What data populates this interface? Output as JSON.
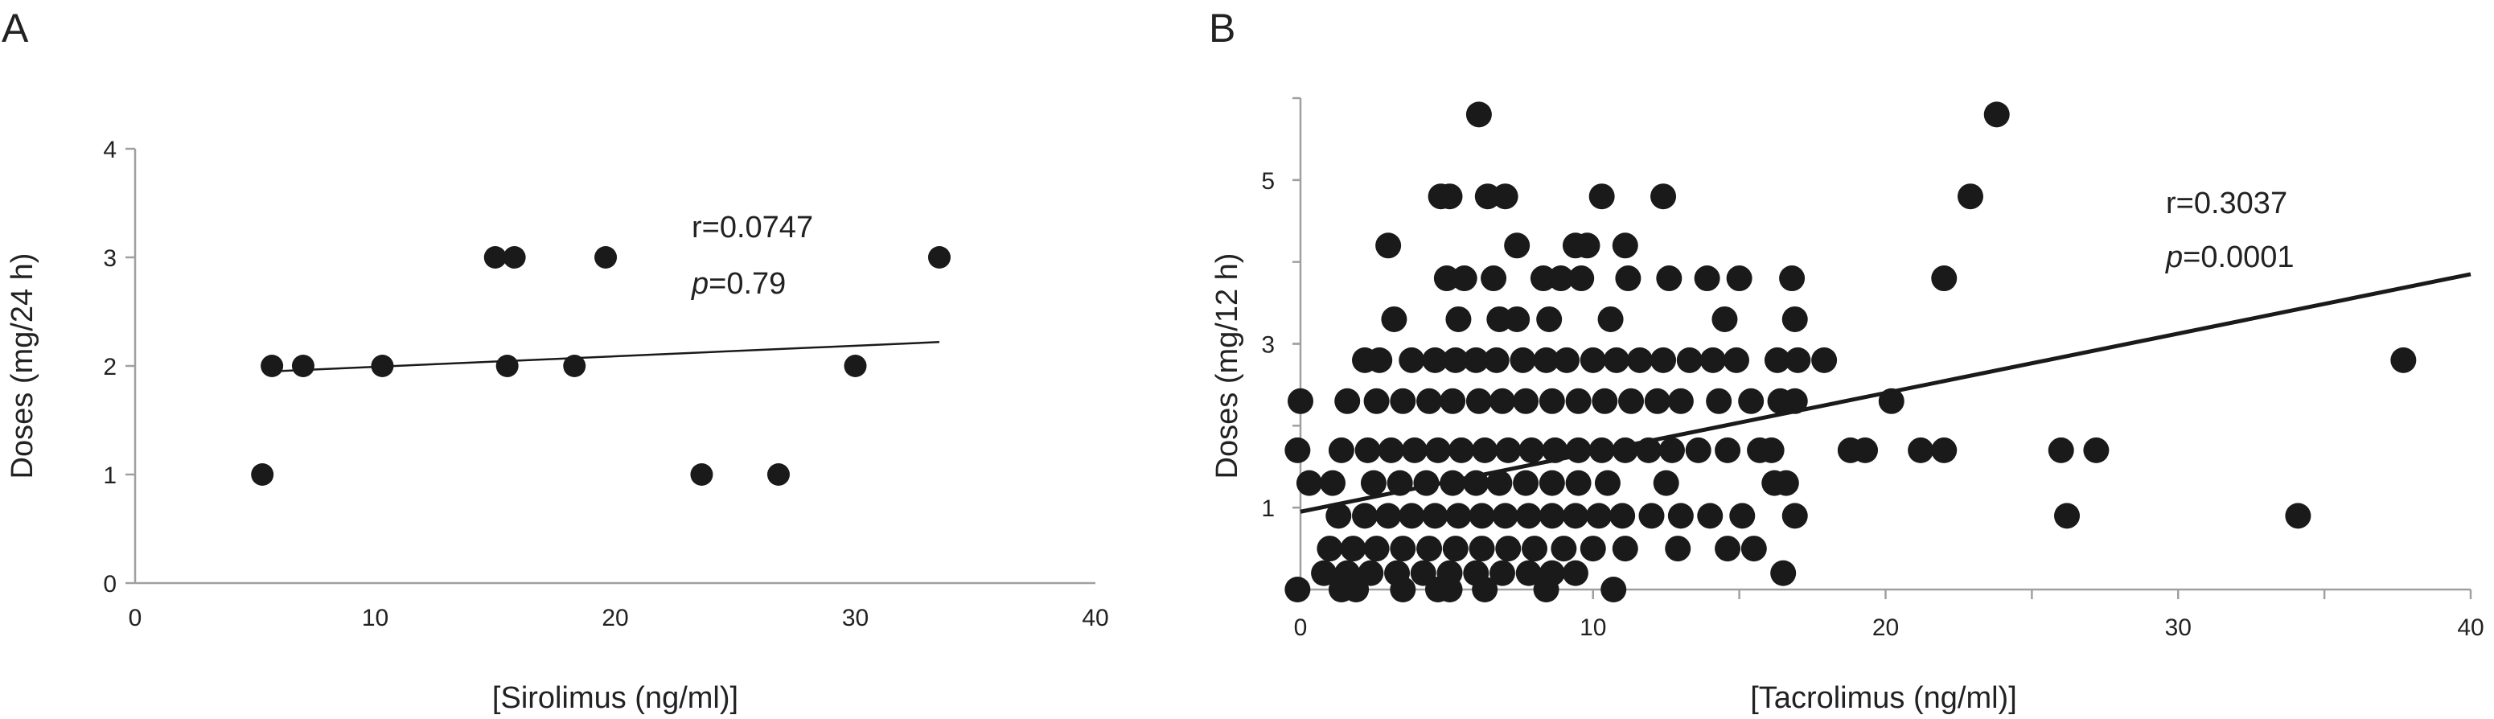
{
  "chart_data": [
    {
      "panel": "A",
      "type": "scatter",
      "xlabel": "[Sirolimus (ng/ml)]",
      "ylabel": "Doses (mg/24 h)",
      "xlim": [
        0,
        40
      ],
      "ylim": [
        0,
        4
      ],
      "xticks": [
        0,
        10,
        20,
        30,
        40
      ],
      "yticks": [
        0,
        1,
        2,
        3,
        4
      ],
      "grid": false,
      "points": [
        {
          "x": 5.3,
          "y": 1
        },
        {
          "x": 5.7,
          "y": 2
        },
        {
          "x": 7.0,
          "y": 2
        },
        {
          "x": 10.3,
          "y": 2
        },
        {
          "x": 15.0,
          "y": 3
        },
        {
          "x": 15.8,
          "y": 3
        },
        {
          "x": 15.5,
          "y": 2
        },
        {
          "x": 18.3,
          "y": 2
        },
        {
          "x": 19.6,
          "y": 3
        },
        {
          "x": 23.6,
          "y": 1
        },
        {
          "x": 26.8,
          "y": 1
        },
        {
          "x": 30.0,
          "y": 2
        },
        {
          "x": 33.5,
          "y": 3
        }
      ],
      "trendline": {
        "x": [
          5.7,
          33.5
        ],
        "y": [
          1.95,
          2.22
        ]
      },
      "annotations": {
        "r_text": "r=0.0747",
        "p_symbol": "p",
        "p_value": "=0.79"
      }
    },
    {
      "panel": "B",
      "type": "scatter",
      "xlabel": "[Tacrolimus (ng/ml)]",
      "ylabel": "Doses (mg/12 h)",
      "xlim": [
        0,
        40
      ],
      "ylim": [
        0,
        6
      ],
      "xticks": [
        0,
        10,
        20,
        30,
        40
      ],
      "yticks": [
        1,
        3,
        5
      ],
      "grid": false,
      "points": [
        {
          "x": 6.1,
          "y": 5.8
        },
        {
          "x": 23.8,
          "y": 5.8
        },
        {
          "x": 4.8,
          "y": 4.8
        },
        {
          "x": 5.1,
          "y": 4.8
        },
        {
          "x": 6.4,
          "y": 4.8
        },
        {
          "x": 7.0,
          "y": 4.8
        },
        {
          "x": 10.3,
          "y": 4.8
        },
        {
          "x": 12.4,
          "y": 4.8
        },
        {
          "x": 22.9,
          "y": 4.8
        },
        {
          "x": 3.0,
          "y": 4.2
        },
        {
          "x": 7.4,
          "y": 4.2
        },
        {
          "x": 9.4,
          "y": 4.2
        },
        {
          "x": 9.8,
          "y": 4.2
        },
        {
          "x": 11.1,
          "y": 4.2
        },
        {
          "x": 5.0,
          "y": 3.8
        },
        {
          "x": 5.6,
          "y": 3.8
        },
        {
          "x": 6.6,
          "y": 3.8
        },
        {
          "x": 8.3,
          "y": 3.8
        },
        {
          "x": 8.9,
          "y": 3.8
        },
        {
          "x": 9.6,
          "y": 3.8
        },
        {
          "x": 11.2,
          "y": 3.8
        },
        {
          "x": 12.6,
          "y": 3.8
        },
        {
          "x": 13.9,
          "y": 3.8
        },
        {
          "x": 15.0,
          "y": 3.8
        },
        {
          "x": 16.8,
          "y": 3.8
        },
        {
          "x": 22.0,
          "y": 3.8
        },
        {
          "x": 3.2,
          "y": 3.3
        },
        {
          "x": 5.4,
          "y": 3.3
        },
        {
          "x": 6.8,
          "y": 3.3
        },
        {
          "x": 7.4,
          "y": 3.3
        },
        {
          "x": 8.5,
          "y": 3.3
        },
        {
          "x": 10.6,
          "y": 3.3
        },
        {
          "x": 14.5,
          "y": 3.3
        },
        {
          "x": 16.9,
          "y": 3.3
        },
        {
          "x": 2.2,
          "y": 2.8
        },
        {
          "x": 2.7,
          "y": 2.8
        },
        {
          "x": 3.8,
          "y": 2.8
        },
        {
          "x": 4.6,
          "y": 2.8
        },
        {
          "x": 5.3,
          "y": 2.8
        },
        {
          "x": 6.0,
          "y": 2.8
        },
        {
          "x": 6.7,
          "y": 2.8
        },
        {
          "x": 7.6,
          "y": 2.8
        },
        {
          "x": 8.4,
          "y": 2.8
        },
        {
          "x": 9.1,
          "y": 2.8
        },
        {
          "x": 10.0,
          "y": 2.8
        },
        {
          "x": 10.8,
          "y": 2.8
        },
        {
          "x": 11.6,
          "y": 2.8
        },
        {
          "x": 12.4,
          "y": 2.8
        },
        {
          "x": 13.3,
          "y": 2.8
        },
        {
          "x": 14.1,
          "y": 2.8
        },
        {
          "x": 14.9,
          "y": 2.8
        },
        {
          "x": 16.3,
          "y": 2.8
        },
        {
          "x": 17.0,
          "y": 2.8
        },
        {
          "x": 17.9,
          "y": 2.8
        },
        {
          "x": 37.7,
          "y": 2.8
        },
        {
          "x": 0.0,
          "y": 2.3
        },
        {
          "x": 1.6,
          "y": 2.3
        },
        {
          "x": 2.6,
          "y": 2.3
        },
        {
          "x": 3.5,
          "y": 2.3
        },
        {
          "x": 4.4,
          "y": 2.3
        },
        {
          "x": 5.2,
          "y": 2.3
        },
        {
          "x": 6.1,
          "y": 2.3
        },
        {
          "x": 6.9,
          "y": 2.3
        },
        {
          "x": 7.7,
          "y": 2.3
        },
        {
          "x": 8.6,
          "y": 2.3
        },
        {
          "x": 9.5,
          "y": 2.3
        },
        {
          "x": 10.4,
          "y": 2.3
        },
        {
          "x": 11.3,
          "y": 2.3
        },
        {
          "x": 12.2,
          "y": 2.3
        },
        {
          "x": 13.0,
          "y": 2.3
        },
        {
          "x": 14.3,
          "y": 2.3
        },
        {
          "x": 15.4,
          "y": 2.3
        },
        {
          "x": 16.4,
          "y": 2.3
        },
        {
          "x": 16.9,
          "y": 2.3
        },
        {
          "x": 20.2,
          "y": 2.3
        },
        {
          "x": -0.1,
          "y": 1.7
        },
        {
          "x": 1.4,
          "y": 1.7
        },
        {
          "x": 2.3,
          "y": 1.7
        },
        {
          "x": 3.1,
          "y": 1.7
        },
        {
          "x": 3.9,
          "y": 1.7
        },
        {
          "x": 4.7,
          "y": 1.7
        },
        {
          "x": 5.5,
          "y": 1.7
        },
        {
          "x": 6.3,
          "y": 1.7
        },
        {
          "x": 7.1,
          "y": 1.7
        },
        {
          "x": 7.9,
          "y": 1.7
        },
        {
          "x": 8.7,
          "y": 1.7
        },
        {
          "x": 9.5,
          "y": 1.7
        },
        {
          "x": 10.3,
          "y": 1.7
        },
        {
          "x": 11.1,
          "y": 1.7
        },
        {
          "x": 11.9,
          "y": 1.7
        },
        {
          "x": 12.7,
          "y": 1.7
        },
        {
          "x": 13.6,
          "y": 1.7
        },
        {
          "x": 14.6,
          "y": 1.7
        },
        {
          "x": 15.7,
          "y": 1.7
        },
        {
          "x": 16.1,
          "y": 1.7
        },
        {
          "x": 18.8,
          "y": 1.7
        },
        {
          "x": 19.3,
          "y": 1.7
        },
        {
          "x": 21.2,
          "y": 1.7
        },
        {
          "x": 22.0,
          "y": 1.7
        },
        {
          "x": 26.0,
          "y": 1.7
        },
        {
          "x": 27.2,
          "y": 1.7
        },
        {
          "x": 0.3,
          "y": 1.3
        },
        {
          "x": 1.1,
          "y": 1.3
        },
        {
          "x": 2.5,
          "y": 1.3
        },
        {
          "x": 3.4,
          "y": 1.3
        },
        {
          "x": 4.3,
          "y": 1.3
        },
        {
          "x": 5.2,
          "y": 1.3
        },
        {
          "x": 6.0,
          "y": 1.3
        },
        {
          "x": 6.8,
          "y": 1.3
        },
        {
          "x": 7.7,
          "y": 1.3
        },
        {
          "x": 8.6,
          "y": 1.3
        },
        {
          "x": 9.5,
          "y": 1.3
        },
        {
          "x": 10.5,
          "y": 1.3
        },
        {
          "x": 12.5,
          "y": 1.3
        },
        {
          "x": 16.2,
          "y": 1.3
        },
        {
          "x": 16.6,
          "y": 1.3
        },
        {
          "x": 1.3,
          "y": 0.9
        },
        {
          "x": 2.2,
          "y": 0.9
        },
        {
          "x": 3.0,
          "y": 0.9
        },
        {
          "x": 3.8,
          "y": 0.9
        },
        {
          "x": 4.6,
          "y": 0.9
        },
        {
          "x": 5.4,
          "y": 0.9
        },
        {
          "x": 6.2,
          "y": 0.9
        },
        {
          "x": 7.0,
          "y": 0.9
        },
        {
          "x": 7.8,
          "y": 0.9
        },
        {
          "x": 8.6,
          "y": 0.9
        },
        {
          "x": 9.4,
          "y": 0.9
        },
        {
          "x": 10.2,
          "y": 0.9
        },
        {
          "x": 11.0,
          "y": 0.9
        },
        {
          "x": 12.0,
          "y": 0.9
        },
        {
          "x": 13.0,
          "y": 0.9
        },
        {
          "x": 14.0,
          "y": 0.9
        },
        {
          "x": 15.1,
          "y": 0.9
        },
        {
          "x": 16.9,
          "y": 0.9
        },
        {
          "x": 26.2,
          "y": 0.9
        },
        {
          "x": 34.1,
          "y": 0.9
        },
        {
          "x": 1.0,
          "y": 0.5
        },
        {
          "x": 1.8,
          "y": 0.5
        },
        {
          "x": 2.6,
          "y": 0.5
        },
        {
          "x": 3.5,
          "y": 0.5
        },
        {
          "x": 4.4,
          "y": 0.5
        },
        {
          "x": 5.3,
          "y": 0.5
        },
        {
          "x": 6.2,
          "y": 0.5
        },
        {
          "x": 7.1,
          "y": 0.5
        },
        {
          "x": 8.0,
          "y": 0.5
        },
        {
          "x": 9.0,
          "y": 0.5
        },
        {
          "x": 10.0,
          "y": 0.5
        },
        {
          "x": 11.1,
          "y": 0.5
        },
        {
          "x": 12.9,
          "y": 0.5
        },
        {
          "x": 14.6,
          "y": 0.5
        },
        {
          "x": 15.5,
          "y": 0.5
        },
        {
          "x": 0.8,
          "y": 0.2
        },
        {
          "x": 1.6,
          "y": 0.2
        },
        {
          "x": 2.4,
          "y": 0.2
        },
        {
          "x": 3.3,
          "y": 0.2
        },
        {
          "x": 4.2,
          "y": 0.2
        },
        {
          "x": 5.1,
          "y": 0.2
        },
        {
          "x": 6.0,
          "y": 0.2
        },
        {
          "x": 6.9,
          "y": 0.2
        },
        {
          "x": 7.8,
          "y": 0.2
        },
        {
          "x": 8.6,
          "y": 0.2
        },
        {
          "x": 9.4,
          "y": 0.2
        },
        {
          "x": 16.5,
          "y": 0.2
        },
        {
          "x": -0.1,
          "y": 0.0
        },
        {
          "x": 1.4,
          "y": 0.0
        },
        {
          "x": 1.9,
          "y": 0.0
        },
        {
          "x": 3.5,
          "y": 0.0
        },
        {
          "x": 4.7,
          "y": 0.0
        },
        {
          "x": 5.1,
          "y": 0.0
        },
        {
          "x": 6.3,
          "y": 0.0
        },
        {
          "x": 8.4,
          "y": 0.0
        },
        {
          "x": 10.7,
          "y": 0.0
        }
      ],
      "trendline": {
        "x": [
          0,
          40
        ],
        "y": [
          0.95,
          3.85
        ]
      },
      "annotations": {
        "r_text": "r=0.3037",
        "p_symbol": "p",
        "p_value": "=0.0001"
      }
    }
  ],
  "panels": {
    "a": {
      "letter": "A"
    },
    "b": {
      "letter": "B"
    }
  },
  "colors": {
    "points": "#1a1a1a",
    "axis": "#a0a0a0",
    "text": "#222222"
  }
}
